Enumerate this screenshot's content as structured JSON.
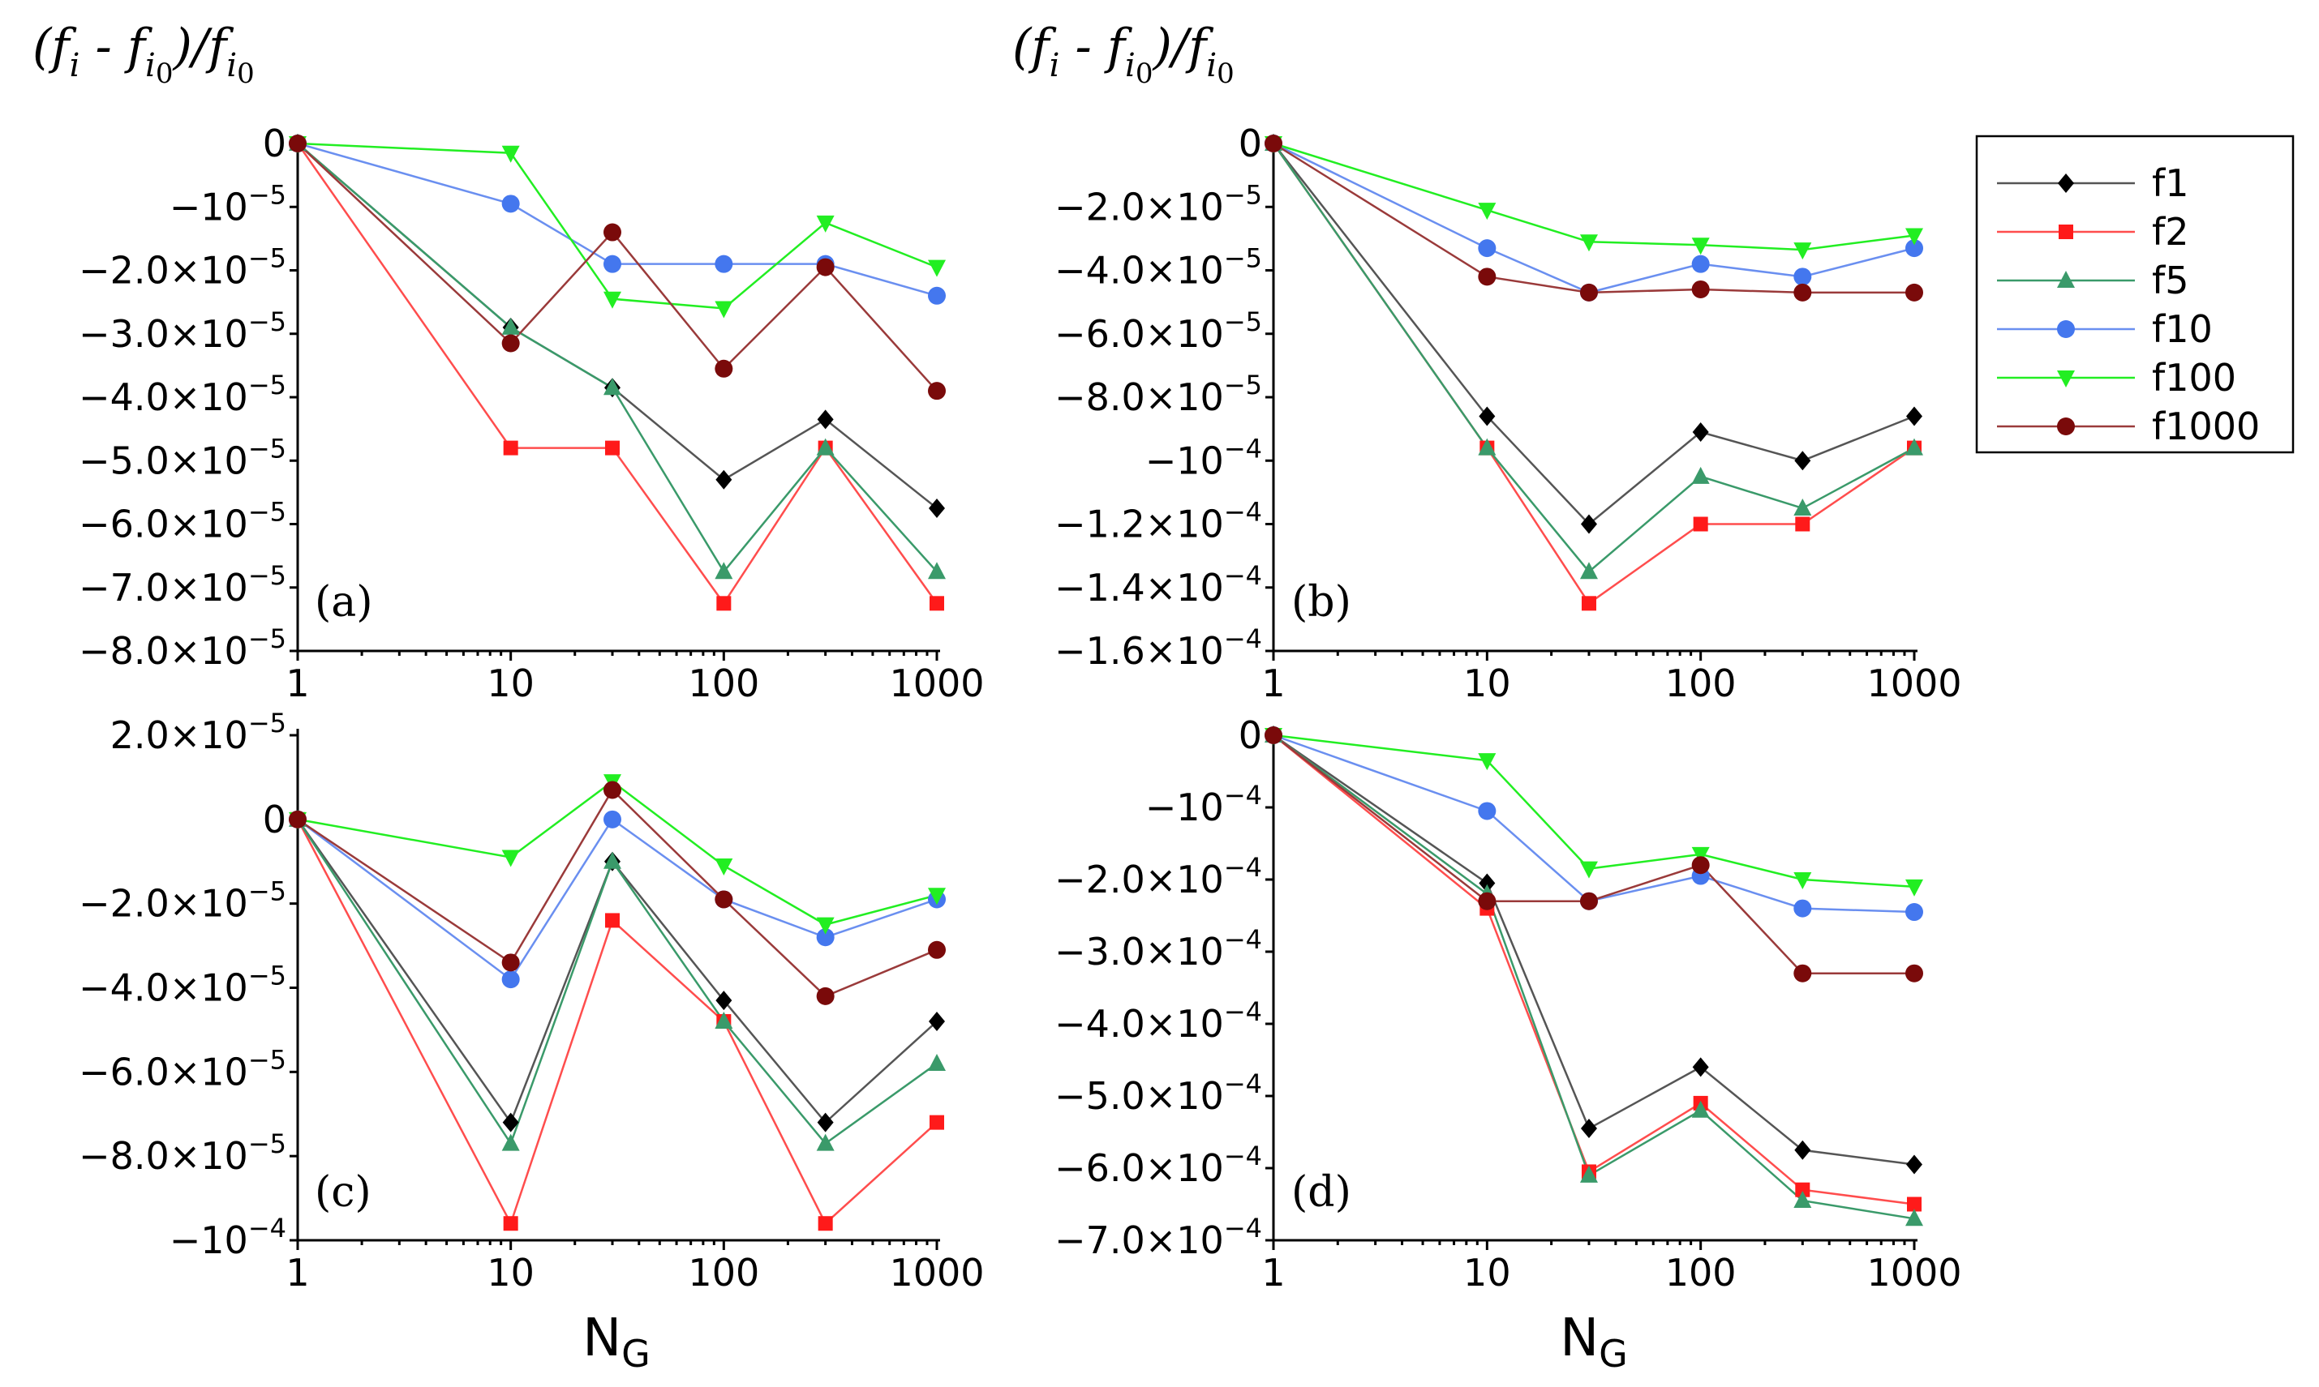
{
  "chart_data": [
    {
      "panel": "(a)",
      "type": "line",
      "xscale": "log",
      "xlabel": "",
      "x": [
        1,
        10,
        30,
        100,
        300,
        1000
      ],
      "ylim": [
        -8e-05,
        0
      ],
      "yticks": [
        {
          "value": 0,
          "label": "0"
        },
        {
          "value": -1e-05,
          "label": "−10",
          "exp": "−5"
        },
        {
          "value": -2e-05,
          "label": "−2.0×10",
          "exp": "−5"
        },
        {
          "value": -3e-05,
          "label": "−3.0×10",
          "exp": "−5"
        },
        {
          "value": -4e-05,
          "label": "−4.0×10",
          "exp": "−5"
        },
        {
          "value": -5e-05,
          "label": "−5.0×10",
          "exp": "−5"
        },
        {
          "value": -6e-05,
          "label": "−6.0×10",
          "exp": "−5"
        },
        {
          "value": -7e-05,
          "label": "−7.0×10",
          "exp": "−5"
        },
        {
          "value": -8e-05,
          "label": "−8.0×10",
          "exp": "−5"
        }
      ],
      "series": [
        {
          "name": "f1",
          "values": [
            0,
            -2.9e-05,
            -3.85e-05,
            -5.3e-05,
            -4.35e-05,
            -5.75e-05
          ]
        },
        {
          "name": "f2",
          "values": [
            0,
            -4.8e-05,
            -4.8e-05,
            -7.25e-05,
            -4.8e-05,
            -7.25e-05
          ]
        },
        {
          "name": "f5",
          "values": [
            0,
            -2.9e-05,
            -3.85e-05,
            -6.75e-05,
            -4.8e-05,
            -6.75e-05
          ]
        },
        {
          "name": "f10",
          "values": [
            0,
            -9.5e-06,
            -1.9e-05,
            -1.9e-05,
            -1.9e-05,
            -2.4e-05
          ]
        },
        {
          "name": "f100",
          "values": [
            0,
            -1.5e-06,
            -2.45e-05,
            -2.6e-05,
            -1.25e-05,
            -1.95e-05
          ]
        },
        {
          "name": "f1000",
          "values": [
            0,
            -3.15e-05,
            -1.4e-05,
            -3.55e-05,
            -1.95e-05,
            -3.9e-05
          ]
        }
      ]
    },
    {
      "panel": "(b)",
      "type": "line",
      "xscale": "log",
      "xlabel": "",
      "x": [
        1,
        10,
        30,
        100,
        300,
        1000
      ],
      "ylim": [
        -0.00016,
        0
      ],
      "yticks": [
        {
          "value": 0,
          "label": "0"
        },
        {
          "value": -2e-05,
          "label": "−2.0×10",
          "exp": "−5"
        },
        {
          "value": -4e-05,
          "label": "−4.0×10",
          "exp": "−5"
        },
        {
          "value": -6e-05,
          "label": "−6.0×10",
          "exp": "−5"
        },
        {
          "value": -8e-05,
          "label": "−8.0×10",
          "exp": "−5"
        },
        {
          "value": -0.0001,
          "label": "−10",
          "exp": "−4"
        },
        {
          "value": -0.00012,
          "label": "−1.2×10",
          "exp": "−4"
        },
        {
          "value": -0.00014,
          "label": "−1.4×10",
          "exp": "−4"
        },
        {
          "value": -0.00016,
          "label": "−1.6×10",
          "exp": "−4"
        }
      ],
      "series": [
        {
          "name": "f1",
          "values": [
            0,
            -8.6e-05,
            -0.00012,
            -9.1e-05,
            -0.0001,
            -8.6e-05
          ]
        },
        {
          "name": "f2",
          "values": [
            0,
            -9.6e-05,
            -0.000145,
            -0.00012,
            -0.00012,
            -9.6e-05
          ]
        },
        {
          "name": "f5",
          "values": [
            0,
            -9.6e-05,
            -0.000135,
            -0.000105,
            -0.000115,
            -9.6e-05
          ]
        },
        {
          "name": "f10",
          "values": [
            0,
            -3.3e-05,
            -4.7e-05,
            -3.8e-05,
            -4.2e-05,
            -3.3e-05
          ]
        },
        {
          "name": "f100",
          "values": [
            0,
            -2.1e-05,
            -3.1e-05,
            -3.2e-05,
            -3.35e-05,
            -2.9e-05
          ]
        },
        {
          "name": "f1000",
          "values": [
            0,
            -4.2e-05,
            -4.7e-05,
            -4.6e-05,
            -4.7e-05,
            -4.7e-05
          ]
        }
      ]
    },
    {
      "panel": "(c)",
      "type": "line",
      "xscale": "log",
      "xlabel": "N",
      "xlabel_sub": "G",
      "x": [
        1,
        10,
        30,
        100,
        300,
        1000
      ],
      "ylim": [
        -0.0001,
        2e-05
      ],
      "yticks": [
        {
          "value": 2e-05,
          "label": "2.0×10",
          "exp": "−5"
        },
        {
          "value": 0,
          "label": "0"
        },
        {
          "value": -2e-05,
          "label": "−2.0×10",
          "exp": "−5"
        },
        {
          "value": -4e-05,
          "label": "−4.0×10",
          "exp": "−5"
        },
        {
          "value": -6e-05,
          "label": "−6.0×10",
          "exp": "−5"
        },
        {
          "value": -8e-05,
          "label": "−8.0×10",
          "exp": "−5"
        },
        {
          "value": -0.0001,
          "label": "−10",
          "exp": "−4"
        }
      ],
      "series": [
        {
          "name": "f1",
          "values": [
            0,
            -7.2e-05,
            -1e-05,
            -4.3e-05,
            -7.2e-05,
            -4.8e-05
          ]
        },
        {
          "name": "f2",
          "values": [
            0,
            -9.6e-05,
            -2.4e-05,
            -4.8e-05,
            -9.6e-05,
            -7.2e-05
          ]
        },
        {
          "name": "f5",
          "values": [
            0,
            -7.7e-05,
            -1e-05,
            -4.8e-05,
            -7.7e-05,
            -5.8e-05
          ]
        },
        {
          "name": "f10",
          "values": [
            0,
            -3.8e-05,
            0,
            -1.9e-05,
            -2.8e-05,
            -1.9e-05
          ]
        },
        {
          "name": "f100",
          "values": [
            0,
            -9e-06,
            9e-06,
            -1.1e-05,
            -2.5e-05,
            -1.8e-05
          ]
        },
        {
          "name": "f1000",
          "values": [
            0,
            -3.4e-05,
            7e-06,
            -1.9e-05,
            -4.2e-05,
            -3.1e-05
          ]
        }
      ]
    },
    {
      "panel": "(d)",
      "type": "line",
      "xscale": "log",
      "xlabel": "N",
      "xlabel_sub": "G",
      "x": [
        1,
        10,
        30,
        100,
        300,
        1000
      ],
      "ylim": [
        -0.0007,
        0
      ],
      "yticks": [
        {
          "value": 0,
          "label": "0"
        },
        {
          "value": -0.0001,
          "label": "−10",
          "exp": "−4"
        },
        {
          "value": -0.0002,
          "label": "−2.0×10",
          "exp": "−4"
        },
        {
          "value": -0.0003,
          "label": "−3.0×10",
          "exp": "−4"
        },
        {
          "value": -0.0004,
          "label": "−4.0×10",
          "exp": "−4"
        },
        {
          "value": -0.0005,
          "label": "−5.0×10",
          "exp": "−4"
        },
        {
          "value": -0.0006,
          "label": "−6.0×10",
          "exp": "−4"
        },
        {
          "value": -0.0007,
          "label": "−7.0×10",
          "exp": "−4"
        }
      ],
      "series": [
        {
          "name": "f1",
          "values": [
            0,
            -0.000205,
            -0.000545,
            -0.00046,
            -0.000575,
            -0.000595
          ]
        },
        {
          "name": "f2",
          "values": [
            0,
            -0.00024,
            -0.000605,
            -0.00051,
            -0.00063,
            -0.00065
          ]
        },
        {
          "name": "f5",
          "values": [
            0,
            -0.00022,
            -0.00061,
            -0.00052,
            -0.000645,
            -0.00067
          ]
        },
        {
          "name": "f10",
          "values": [
            0,
            -0.000105,
            -0.00023,
            -0.000195,
            -0.00024,
            -0.000245
          ]
        },
        {
          "name": "f100",
          "values": [
            0,
            -3.5e-05,
            -0.000185,
            -0.000165,
            -0.0002,
            -0.00021
          ]
        },
        {
          "name": "f1000",
          "values": [
            0,
            -0.00023,
            -0.00023,
            -0.00018,
            -0.00033,
            -0.00033
          ]
        }
      ]
    }
  ],
  "styles": {
    "f1": {
      "color": "#000000",
      "line": "#555555",
      "marker": "diamond"
    },
    "f2": {
      "color": "#ff1a1a",
      "line": "#ff4d4d",
      "marker": "square"
    },
    "f5": {
      "color": "#3a9a6a",
      "line": "#3a9a6a",
      "marker": "triangle-up"
    },
    "f10": {
      "color": "#4477ee",
      "line": "#6a8ff0",
      "marker": "circle"
    },
    "f100": {
      "color": "#22ee22",
      "line": "#22ee22",
      "marker": "triangle-down"
    },
    "f1000": {
      "color": "#7a0a0a",
      "line": "#9a3a3a",
      "marker": "circle"
    }
  },
  "ylabel": {
    "text": "(f",
    "sub_i": "i",
    "minus": " - f",
    "sub_i0": "i",
    "sub_0": "0",
    "close": ")/f"
  },
  "xtick_labels": [
    "1",
    "10",
    "100",
    "1000"
  ],
  "legend": [
    "f1",
    "f2",
    "f5",
    "f10",
    "f100",
    "f1000"
  ]
}
